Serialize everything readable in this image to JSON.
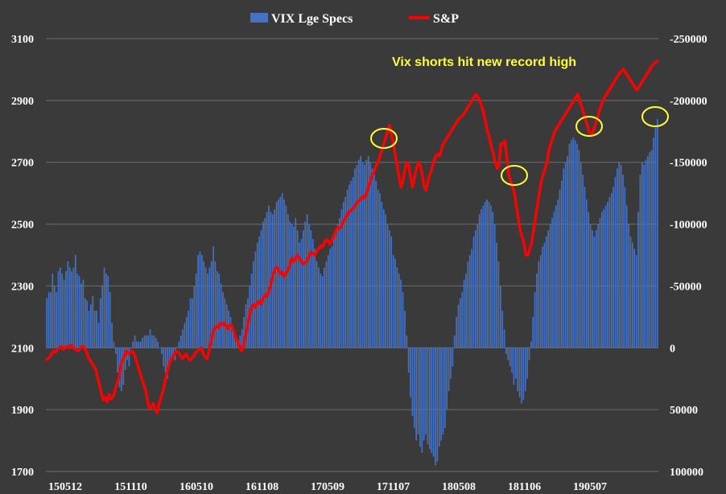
{
  "chart_data": {
    "type": "bar+line",
    "x_tick_labels": [
      "150512",
      "151110",
      "160510",
      "161108",
      "170509",
      "171107",
      "180508",
      "181106",
      "190507"
    ],
    "legend": [
      {
        "name": "VIX Lge Specs",
        "color": "#4472c4",
        "kind": "bar"
      },
      {
        "name": "S&P",
        "color": "#ff0000",
        "kind": "line"
      }
    ],
    "annotation": {
      "text": "Vix shorts hit new record high",
      "color": "#ffff33"
    },
    "left_axis": {
      "ticks": [
        1700,
        1900,
        2100,
        2300,
        2500,
        2700,
        2900,
        3100
      ],
      "ylim": [
        1700,
        3100
      ]
    },
    "right_axis": {
      "ticks": [
        "100000",
        "50000",
        "0",
        "-50000",
        "-100000",
        "-150000",
        "-200000",
        "-250000"
      ],
      "ylim": [
        100000,
        -250000
      ]
    },
    "series_bar_values": [
      -40000,
      -45000,
      -45000,
      -60000,
      -50000,
      -45000,
      -62000,
      -65000,
      -60000,
      -55000,
      -62000,
      -70000,
      -65000,
      -62000,
      -65000,
      -75000,
      -60000,
      -58000,
      -52000,
      -55000,
      -40000,
      -38000,
      -30000,
      -35000,
      -42000,
      -30000,
      -30000,
      -20000,
      -40000,
      -50000,
      -65000,
      -60000,
      -58000,
      -45000,
      -20000,
      -5000,
      5000,
      20000,
      32000,
      35000,
      30000,
      18000,
      10000,
      15000,
      0,
      -5000,
      -10000,
      -5000,
      -5000,
      -5000,
      -8000,
      -10000,
      -10000,
      -10000,
      -15000,
      -10000,
      -10000,
      -8000,
      -5000,
      0,
      5000,
      15000,
      20000,
      25000,
      15000,
      10000,
      5000,
      10000,
      0,
      -5000,
      -10000,
      -15000,
      -20000,
      -25000,
      -30000,
      -40000,
      -40000,
      -50000,
      -60000,
      -75000,
      -78000,
      -75000,
      -70000,
      -65000,
      -60000,
      -65000,
      -70000,
      -82000,
      -70000,
      -62000,
      -60000,
      -52000,
      -45000,
      -40000,
      -35000,
      -30000,
      -25000,
      -15000,
      -10000,
      -5000,
      -5000,
      -10000,
      -15000,
      -25000,
      -35000,
      -40000,
      -50000,
      -60000,
      -70000,
      -78000,
      -85000,
      -90000,
      -95000,
      -102000,
      -105000,
      -110000,
      -115000,
      -110000,
      -108000,
      -112000,
      -118000,
      -120000,
      -122000,
      -125000,
      -120000,
      -115000,
      -108000,
      -102000,
      -100000,
      -98000,
      -105000,
      -95000,
      -85000,
      -88000,
      -95000,
      -102000,
      -108000,
      -100000,
      -95000,
      -88000,
      -80000,
      -70000,
      -65000,
      -60000,
      -58000,
      -65000,
      -70000,
      -75000,
      -80000,
      -82000,
      -90000,
      -95000,
      -100000,
      -105000,
      -112000,
      -118000,
      -122000,
      -128000,
      -132000,
      -135000,
      -138000,
      -145000,
      -148000,
      -152000,
      -155000,
      -150000,
      -148000,
      -152000,
      -155000,
      -150000,
      -145000,
      -140000,
      -135000,
      -128000,
      -125000,
      -118000,
      -112000,
      -108000,
      -100000,
      -95000,
      -90000,
      -75000,
      -72000,
      -65000,
      -60000,
      -55000,
      -45000,
      -30000,
      -10000,
      20000,
      40000,
      55000,
      65000,
      75000,
      70000,
      80000,
      85000,
      75000,
      70000,
      78000,
      82000,
      85000,
      88000,
      95000,
      92000,
      80000,
      75000,
      70000,
      65000,
      50000,
      35000,
      25000,
      15000,
      -10000,
      -25000,
      -35000,
      -40000,
      -45000,
      -55000,
      -60000,
      -70000,
      -75000,
      -80000,
      -90000,
      -95000,
      -100000,
      -108000,
      -112000,
      -115000,
      -118000,
      -120000,
      -118000,
      -115000,
      -110000,
      -100000,
      -85000,
      -70000,
      -50000,
      -30000,
      -15000,
      5000,
      10000,
      15000,
      20000,
      30000,
      25000,
      35000,
      40000,
      45000,
      42000,
      35000,
      25000,
      10000,
      -5000,
      -25000,
      -45000,
      -60000,
      -70000,
      -75000,
      -82000,
      -85000,
      -90000,
      -95000,
      -100000,
      -105000,
      -110000,
      -115000,
      -120000,
      -128000,
      -135000,
      -145000,
      -150000,
      -155000,
      -165000,
      -168000,
      -170000,
      -168000,
      -165000,
      -160000,
      -150000,
      -140000,
      -130000,
      -120000,
      -110000,
      -100000,
      -95000,
      -90000,
      -95000,
      -100000,
      -105000,
      -110000,
      -112000,
      -115000,
      -118000,
      -122000,
      -125000,
      -130000,
      -138000,
      -145000,
      -150000,
      -148000,
      -140000,
      -130000,
      -115000,
      -100000,
      -90000,
      -85000,
      -80000,
      -75000,
      -110000,
      -140000,
      -150000,
      -148000,
      -152000,
      -155000,
      -158000,
      -160000,
      -170000,
      -178000,
      -185000
    ],
    "series_line_values": [
      2060,
      2065,
      2070,
      2080,
      2090,
      2085,
      2095,
      2100,
      2105,
      2095,
      2100,
      2105,
      2100,
      2110,
      2100,
      2098,
      2092,
      2090,
      2100,
      2105,
      2100,
      2090,
      2070,
      2060,
      2050,
      2040,
      2030,
      2000,
      1980,
      1950,
      1930,
      1940,
      1925,
      1950,
      1935,
      1940,
      1960,
      1985,
      2000,
      2040,
      2060,
      2075,
      2090,
      2080,
      2085,
      2090,
      2080,
      2060,
      2040,
      2020,
      2000,
      1980,
      1960,
      1925,
      1905,
      1910,
      1920,
      1900,
      1890,
      1920,
      1940,
      1960,
      1990,
      2020,
      2040,
      2060,
      2070,
      2080,
      2090,
      2085,
      2075,
      2065,
      2070,
      2080,
      2070,
      2060,
      2065,
      2075,
      2085,
      2090,
      2095,
      2100,
      2080,
      2070,
      2065,
      2090,
      2120,
      2150,
      2165,
      2170,
      2165,
      2180,
      2175,
      2180,
      2170,
      2160,
      2175,
      2170,
      2150,
      2130,
      2120,
      2100,
      2090,
      2110,
      2140,
      2170,
      2200,
      2230,
      2240,
      2230,
      2245,
      2250,
      2240,
      2260,
      2270,
      2265,
      2280,
      2300,
      2330,
      2350,
      2360,
      2355,
      2340,
      2345,
      2330,
      2340,
      2350,
      2365,
      2390,
      2380,
      2385,
      2400,
      2390,
      2380,
      2370,
      2375,
      2380,
      2395,
      2410,
      2405,
      2400,
      2410,
      2420,
      2430,
      2425,
      2440,
      2450,
      2445,
      2435,
      2450,
      2460,
      2480,
      2490,
      2485,
      2495,
      2510,
      2520,
      2530,
      2540,
      2545,
      2550,
      2560,
      2570,
      2575,
      2580,
      2590,
      2585,
      2600,
      2620,
      2640,
      2660,
      2670,
      2690,
      2700,
      2720,
      2740,
      2760,
      2780,
      2800,
      2820,
      2790,
      2760,
      2720,
      2690,
      2650,
      2620,
      2640,
      2680,
      2700,
      2690,
      2650,
      2620,
      2650,
      2680,
      2700,
      2690,
      2660,
      2620,
      2610,
      2640,
      2660,
      2680,
      2700,
      2720,
      2725,
      2720,
      2740,
      2760,
      2770,
      2780,
      2790,
      2800,
      2810,
      2820,
      2830,
      2840,
      2845,
      2850,
      2860,
      2870,
      2880,
      2890,
      2900,
      2910,
      2920,
      2910,
      2900,
      2880,
      2860,
      2830,
      2800,
      2780,
      2750,
      2730,
      2700,
      2680,
      2690,
      2760,
      2760,
      2770,
      2720,
      2660,
      2640,
      2620,
      2600,
      2560,
      2520,
      2480,
      2460,
      2440,
      2400,
      2400,
      2420,
      2440,
      2480,
      2520,
      2560,
      2600,
      2640,
      2660,
      2680,
      2700,
      2740,
      2760,
      2780,
      2800,
      2810,
      2820,
      2830,
      2840,
      2850,
      2860,
      2870,
      2880,
      2890,
      2900,
      2910,
      2920,
      2900,
      2880,
      2860,
      2840,
      2820,
      2800,
      2790,
      2800,
      2820,
      2840,
      2860,
      2880,
      2900,
      2910,
      2920,
      2930,
      2940,
      2950,
      2960,
      2970,
      2980,
      2990,
      2995,
      3000,
      2990,
      2980,
      2970,
      2960,
      2950,
      2940,
      2935,
      2945,
      2955,
      2965,
      2975,
      2985,
      2995,
      3005,
      3015,
      3020,
      3025,
      3030
    ]
  }
}
